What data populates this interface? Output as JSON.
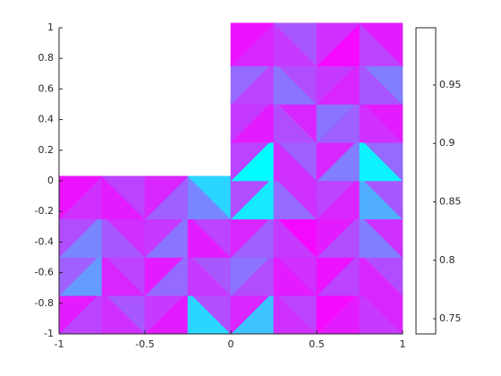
{
  "chart_data": {
    "type": "trimesh",
    "xlim": [
      -1,
      1
    ],
    "ylim": [
      -1,
      1
    ],
    "xticks": [
      -1,
      -0.5,
      0,
      0.5,
      1
    ],
    "yticks": [
      -1,
      -0.8,
      -0.6,
      -0.4,
      -0.2,
      0,
      0.2,
      0.4,
      0.6,
      0.8,
      1
    ],
    "colormap": [
      "#00ffff",
      "#ff00ff"
    ],
    "clim": [
      0.737,
      0.999
    ],
    "cticks": [
      0.75,
      0.8,
      0.85,
      0.9,
      0.95
    ],
    "cells": {
      "x": [
        -1,
        -0.75,
        -0.5,
        -0.25,
        0,
        0.25,
        0.5,
        0.75,
        -1,
        -0.75,
        -0.5,
        -0.25,
        0,
        0.25,
        0.5,
        0.75,
        -1,
        -0.75,
        -0.5,
        -0.25,
        0,
        0.25,
        0.5,
        0.75,
        -1,
        -0.75,
        -0.5,
        -0.25,
        0,
        0.25,
        0.5,
        0.75,
        0,
        0.25,
        0.5,
        0.75,
        0,
        0.25,
        0.5,
        0.75,
        0,
        0.25,
        0.5,
        0.75,
        0,
        0.25,
        0.5,
        0.75
      ],
      "y": [
        -1,
        -1,
        -1,
        -1,
        -1,
        -1,
        -1,
        -1,
        -0.75,
        -0.75,
        -0.75,
        -0.75,
        -0.75,
        -0.75,
        -0.75,
        -0.75,
        -0.5,
        -0.5,
        -0.5,
        -0.5,
        -0.5,
        -0.5,
        -0.5,
        -0.5,
        -0.25,
        -0.25,
        -0.25,
        -0.25,
        -0.25,
        -0.25,
        -0.25,
        -0.25,
        0,
        0,
        0,
        0,
        0.25,
        0.25,
        0.25,
        0.25,
        0.5,
        0.5,
        0.5,
        0.5,
        0.75,
        0.75,
        0.75,
        0.75
      ]
    },
    "values": [
      [
        0.93,
        0.97
      ],
      [
        0.95,
        0.91
      ],
      [
        0.97,
        0.94
      ],
      [
        0.78,
        0.92
      ],
      [
        0.8,
        0.96
      ],
      [
        0.95,
        0.93
      ],
      [
        0.97,
        0.99
      ],
      [
        0.94,
        0.96
      ],
      [
        0.84,
        0.9
      ],
      [
        0.96,
        0.93
      ],
      [
        0.89,
        0.97
      ],
      [
        0.94,
        0.91
      ],
      [
        0.92,
        0.88
      ],
      [
        0.97,
        0.95
      ],
      [
        0.93,
        0.98
      ],
      [
        0.96,
        0.92
      ],
      [
        0.86,
        0.92
      ],
      [
        0.91,
        0.95
      ],
      [
        0.88,
        0.94
      ],
      [
        0.97,
        0.93
      ],
      [
        0.9,
        0.96
      ],
      [
        0.94,
        0.99
      ],
      [
        0.92,
        0.97
      ],
      [
        0.87,
        0.95
      ],
      [
        0.95,
        0.98
      ],
      [
        0.97,
        0.93
      ],
      [
        0.9,
        0.96
      ],
      [
        0.86,
        0.78
      ],
      [
        0.76,
        0.92
      ],
      [
        0.89,
        0.95
      ],
      [
        0.96,
        0.93
      ],
      [
        0.82,
        0.91
      ],
      [
        0.74,
        0.93
      ],
      [
        0.95,
        0.9
      ],
      [
        0.87,
        0.96
      ],
      [
        0.75,
        0.89
      ],
      [
        0.97,
        0.94
      ],
      [
        0.92,
        0.96
      ],
      [
        0.9,
        0.88
      ],
      [
        0.95,
        0.97
      ],
      [
        0.93,
        0.89
      ],
      [
        0.88,
        0.92
      ],
      [
        0.96,
        0.94
      ],
      [
        0.91,
        0.87
      ],
      [
        0.96,
        0.98
      ],
      [
        0.94,
        0.91
      ],
      [
        0.99,
        0.95
      ],
      [
        0.93,
        0.97
      ]
    ]
  }
}
